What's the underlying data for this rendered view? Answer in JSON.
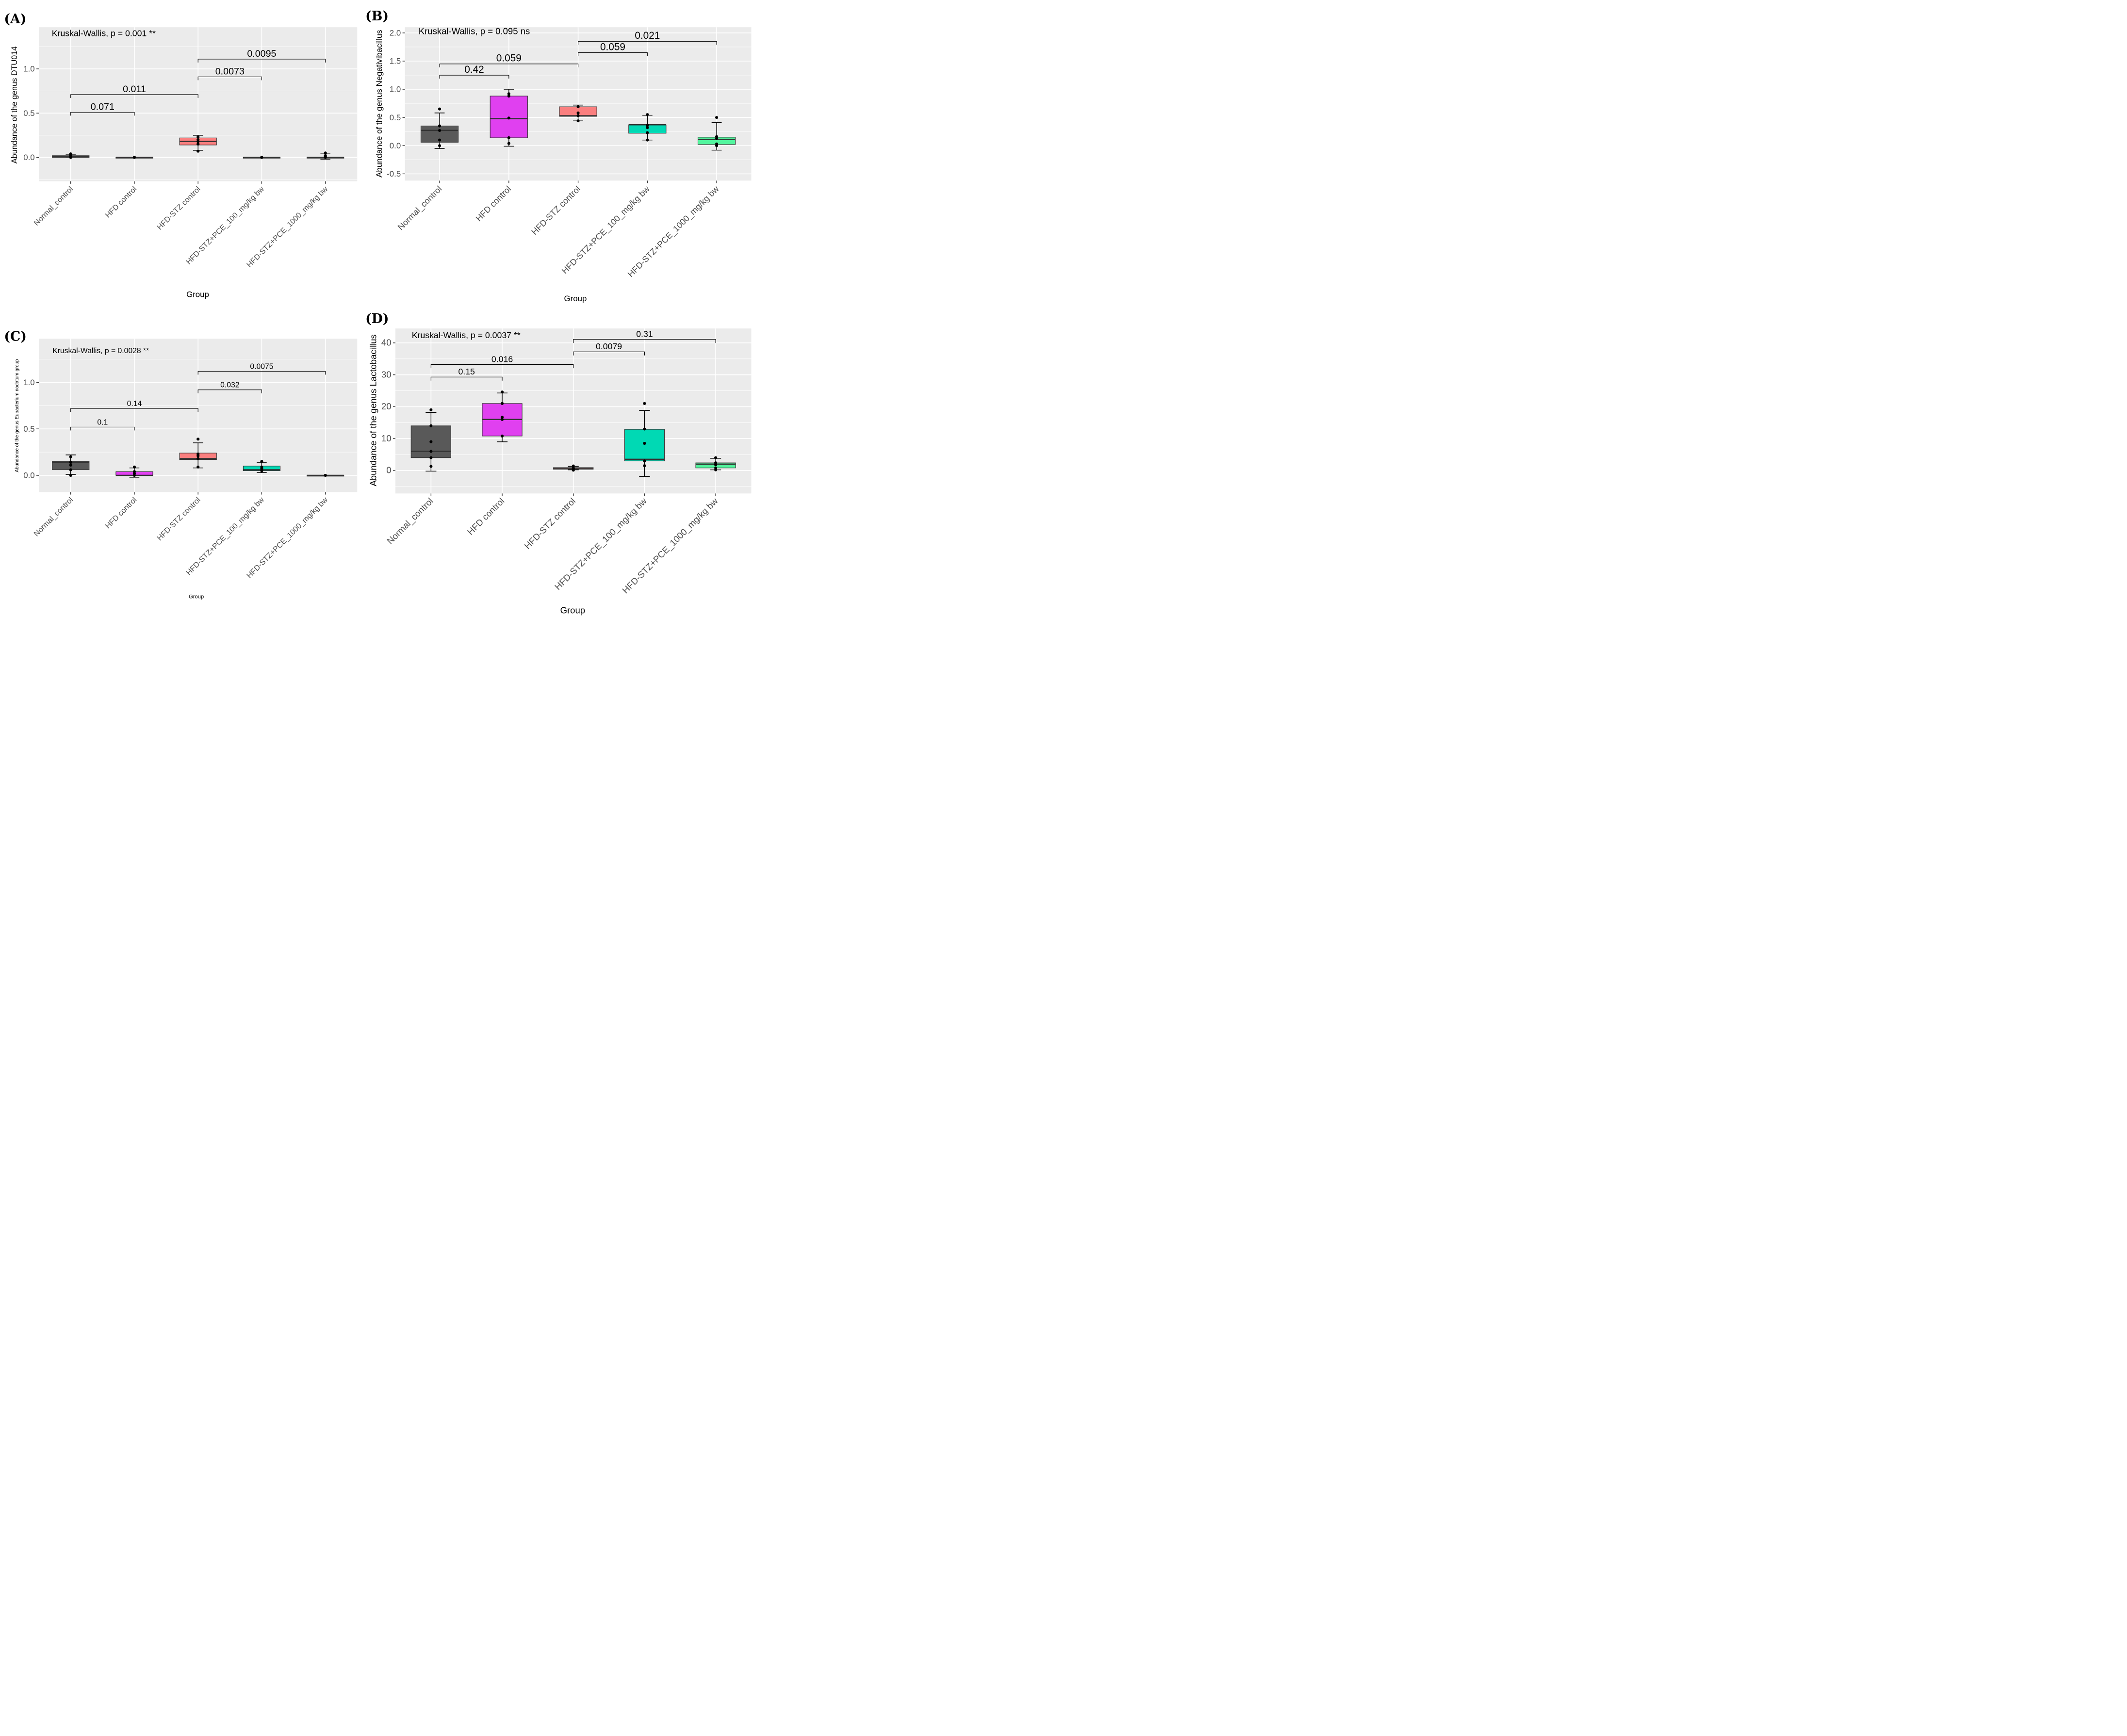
{
  "figure": {
    "x_axis_title": "Group",
    "categories": [
      "Normal_control",
      "HFD control",
      "HFD-STZ control",
      "HFD-STZ+PCE_100_mg/kg bw",
      "HFD-STZ+PCE_1000_mg/kg bw"
    ],
    "colors": {
      "panel_bg": "#ebebeb",
      "grid": "#ffffff",
      "groups": [
        "#595959",
        "#e040f0",
        "#fa7f7f",
        "#00d9b4",
        "#53f59e"
      ]
    }
  },
  "chart_data": [
    {
      "id": "A",
      "panel_label": "(A)",
      "type": "box",
      "title": "",
      "xlabel": "Group",
      "ylabel": "Abundance of the genus DTU014",
      "ylim": [
        -0.27,
        1.47
      ],
      "yticks": [
        0.0,
        0.5,
        1.0
      ],
      "ytick_labels": [
        "0.0",
        "0.5",
        "1.0"
      ],
      "kruskal_wallis": "Kruskal-Wallis, p =  0.001 **",
      "boxes": [
        {
          "q1": 0.0,
          "median": 0.01,
          "q3": 0.02,
          "whisker_low": 0.0,
          "whisker_high": 0.03,
          "points": [
            0.0,
            0.01,
            0.02,
            0.03,
            0.04
          ]
        },
        {
          "q1": 0.0,
          "median": 0.0,
          "q3": 0.0,
          "whisker_low": 0.0,
          "whisker_high": 0.0,
          "points": [
            0.0,
            0.0,
            0.0,
            0.0,
            0.0
          ]
        },
        {
          "q1": 0.14,
          "median": 0.18,
          "q3": 0.22,
          "whisker_low": 0.08,
          "whisker_high": 0.25,
          "points": [
            0.07,
            0.15,
            0.18,
            0.2,
            0.23
          ]
        },
        {
          "q1": 0.0,
          "median": 0.0,
          "q3": 0.0,
          "whisker_low": 0.0,
          "whisker_high": 0.0,
          "points": [
            0.0,
            0.0,
            0.0,
            0.0,
            0.0
          ]
        },
        {
          "q1": 0.0,
          "median": 0.0,
          "q3": 0.0,
          "whisker_low": -0.02,
          "whisker_high": 0.04,
          "points": [
            0.0,
            0.01,
            0.02,
            0.05
          ]
        }
      ],
      "comparisons": [
        {
          "from": 0,
          "to": 1,
          "y": 0.51,
          "label": "0.071"
        },
        {
          "from": 0,
          "to": 2,
          "y": 0.71,
          "label": "0.011"
        },
        {
          "from": 2,
          "to": 3,
          "y": 0.91,
          "label": "0.0073"
        },
        {
          "from": 2,
          "to": 4,
          "y": 1.11,
          "label": "0.0095"
        }
      ]
    },
    {
      "id": "B",
      "panel_label": "(B)",
      "type": "box",
      "title": "",
      "xlabel": "Group",
      "ylabel": "Abundance of the genus Negativibacillus",
      "ylim": [
        -0.62,
        2.1
      ],
      "yticks": [
        -0.5,
        0.0,
        0.5,
        1.0,
        1.5,
        2.0
      ],
      "ytick_labels": [
        "-0.5",
        "0.0",
        "0.5",
        "1.0",
        "1.5",
        "2.0"
      ],
      "kruskal_wallis": "Kruskal-Wallis, p =  0.095 ns",
      "boxes": [
        {
          "q1": 0.06,
          "median": 0.27,
          "q3": 0.35,
          "whisker_low": -0.05,
          "whisker_high": 0.58,
          "points": [
            0.0,
            0.1,
            0.27,
            0.35,
            0.65
          ]
        },
        {
          "q1": 0.14,
          "median": 0.48,
          "q3": 0.88,
          "whisker_low": -0.01,
          "whisker_high": 1.0,
          "points": [
            0.04,
            0.14,
            0.49,
            0.88,
            0.92
          ]
        },
        {
          "q1": 0.52,
          "median": 0.53,
          "q3": 0.69,
          "whisker_low": 0.44,
          "whisker_high": 0.72,
          "points": [
            0.44,
            0.53,
            0.58,
            0.69
          ]
        },
        {
          "q1": 0.22,
          "median": 0.37,
          "q3": 0.37,
          "whisker_low": 0.1,
          "whisker_high": 0.54,
          "points": [
            0.1,
            0.23,
            0.32,
            0.36,
            0.55
          ]
        },
        {
          "q1": 0.02,
          "median": 0.11,
          "q3": 0.15,
          "whisker_low": -0.08,
          "whisker_high": 0.41,
          "points": [
            0.0,
            0.03,
            0.13,
            0.16,
            0.5
          ]
        }
      ],
      "comparisons": [
        {
          "from": 0,
          "to": 1,
          "y": 1.25,
          "label": "0.42"
        },
        {
          "from": 0,
          "to": 2,
          "y": 1.45,
          "label": "0.059"
        },
        {
          "from": 2,
          "to": 3,
          "y": 1.65,
          "label": "0.059"
        },
        {
          "from": 2,
          "to": 4,
          "y": 1.85,
          "label": "0.021"
        }
      ]
    },
    {
      "id": "C",
      "panel_label": "(C)",
      "type": "box",
      "title": "",
      "xlabel": "Group",
      "ylabel": "Abundance of the genus Eubacterium nodatum group",
      "ylim": [
        -0.18,
        1.47
      ],
      "yticks": [
        0.0,
        0.5,
        1.0
      ],
      "ytick_labels": [
        "0.0",
        "0.5",
        "1.0"
      ],
      "kruskal_wallis": "Kruskal-Wallis, p =  0.0028 **",
      "boxes": [
        {
          "q1": 0.06,
          "median": 0.14,
          "q3": 0.15,
          "whisker_low": 0.01,
          "whisker_high": 0.22,
          "points": [
            0.0,
            0.06,
            0.11,
            0.14,
            0.2
          ]
        },
        {
          "q1": 0.0,
          "median": 0.0,
          "q3": 0.04,
          "whisker_low": -0.02,
          "whisker_high": 0.08,
          "points": [
            0.0,
            0.02,
            0.04,
            0.09
          ]
        },
        {
          "q1": 0.17,
          "median": 0.18,
          "q3": 0.24,
          "whisker_low": 0.08,
          "whisker_high": 0.35,
          "points": [
            0.09,
            0.18,
            0.21,
            0.23,
            0.39
          ]
        },
        {
          "q1": 0.05,
          "median": 0.06,
          "q3": 0.1,
          "whisker_low": 0.03,
          "whisker_high": 0.14,
          "points": [
            0.05,
            0.07,
            0.09,
            0.15
          ]
        },
        {
          "q1": 0.0,
          "median": 0.0,
          "q3": 0.0,
          "whisker_low": 0.0,
          "whisker_high": 0.0,
          "points": [
            0.0,
            0.0
          ]
        }
      ],
      "comparisons": [
        {
          "from": 0,
          "to": 1,
          "y": 0.52,
          "label": "0.1"
        },
        {
          "from": 0,
          "to": 2,
          "y": 0.72,
          "label": "0.14"
        },
        {
          "from": 2,
          "to": 3,
          "y": 0.92,
          "label": "0.032"
        },
        {
          "from": 2,
          "to": 4,
          "y": 1.12,
          "label": "0.0075"
        }
      ]
    },
    {
      "id": "D",
      "panel_label": "(D)",
      "type": "box",
      "title": "",
      "xlabel": "Group",
      "ylabel": "Abundance of the genus Lactobacillus",
      "ylim": [
        -7.2,
        44.5
      ],
      "yticks": [
        0,
        10,
        20,
        30,
        40
      ],
      "ytick_labels": [
        "0",
        "10",
        "20",
        "30",
        "40"
      ],
      "kruskal_wallis": "Kruskal-Wallis, p =  0.0037 **",
      "boxes": [
        {
          "q1": 4.0,
          "median": 6.0,
          "q3": 14.0,
          "whisker_low": -0.2,
          "whisker_high": 18.2,
          "points": [
            1.3,
            4.0,
            6.0,
            9.0,
            14.0,
            19.0
          ]
        },
        {
          "q1": 10.8,
          "median": 16.0,
          "q3": 21.0,
          "whisker_low": 9.0,
          "whisker_high": 24.3,
          "points": [
            10.8,
            16.0,
            16.7,
            21.0,
            24.6
          ]
        },
        {
          "q1": 0.4,
          "median": 0.7,
          "q3": 0.9,
          "whisker_low": 0.2,
          "whisker_high": 1.3,
          "points": [
            0.1,
            0.5,
            0.8,
            1.4
          ]
        },
        {
          "q1": 3.0,
          "median": 3.5,
          "q3": 12.9,
          "whisker_low": -1.9,
          "whisker_high": 18.8,
          "points": [
            1.5,
            3.0,
            8.5,
            13.0,
            21.0
          ]
        },
        {
          "q1": 0.8,
          "median": 2.0,
          "q3": 2.4,
          "whisker_low": 0.2,
          "whisker_high": 3.8,
          "points": [
            0.2,
            0.8,
            1.8,
            2.4,
            4.0
          ]
        }
      ],
      "comparisons": [
        {
          "from": 0,
          "to": 1,
          "y": 29.3,
          "label": "0.15"
        },
        {
          "from": 0,
          "to": 2,
          "y": 33.2,
          "label": "0.016"
        },
        {
          "from": 2,
          "to": 3,
          "y": 37.2,
          "label": "0.0079"
        },
        {
          "from": 2,
          "to": 4,
          "y": 41.1,
          "label": "0.31"
        }
      ]
    }
  ]
}
